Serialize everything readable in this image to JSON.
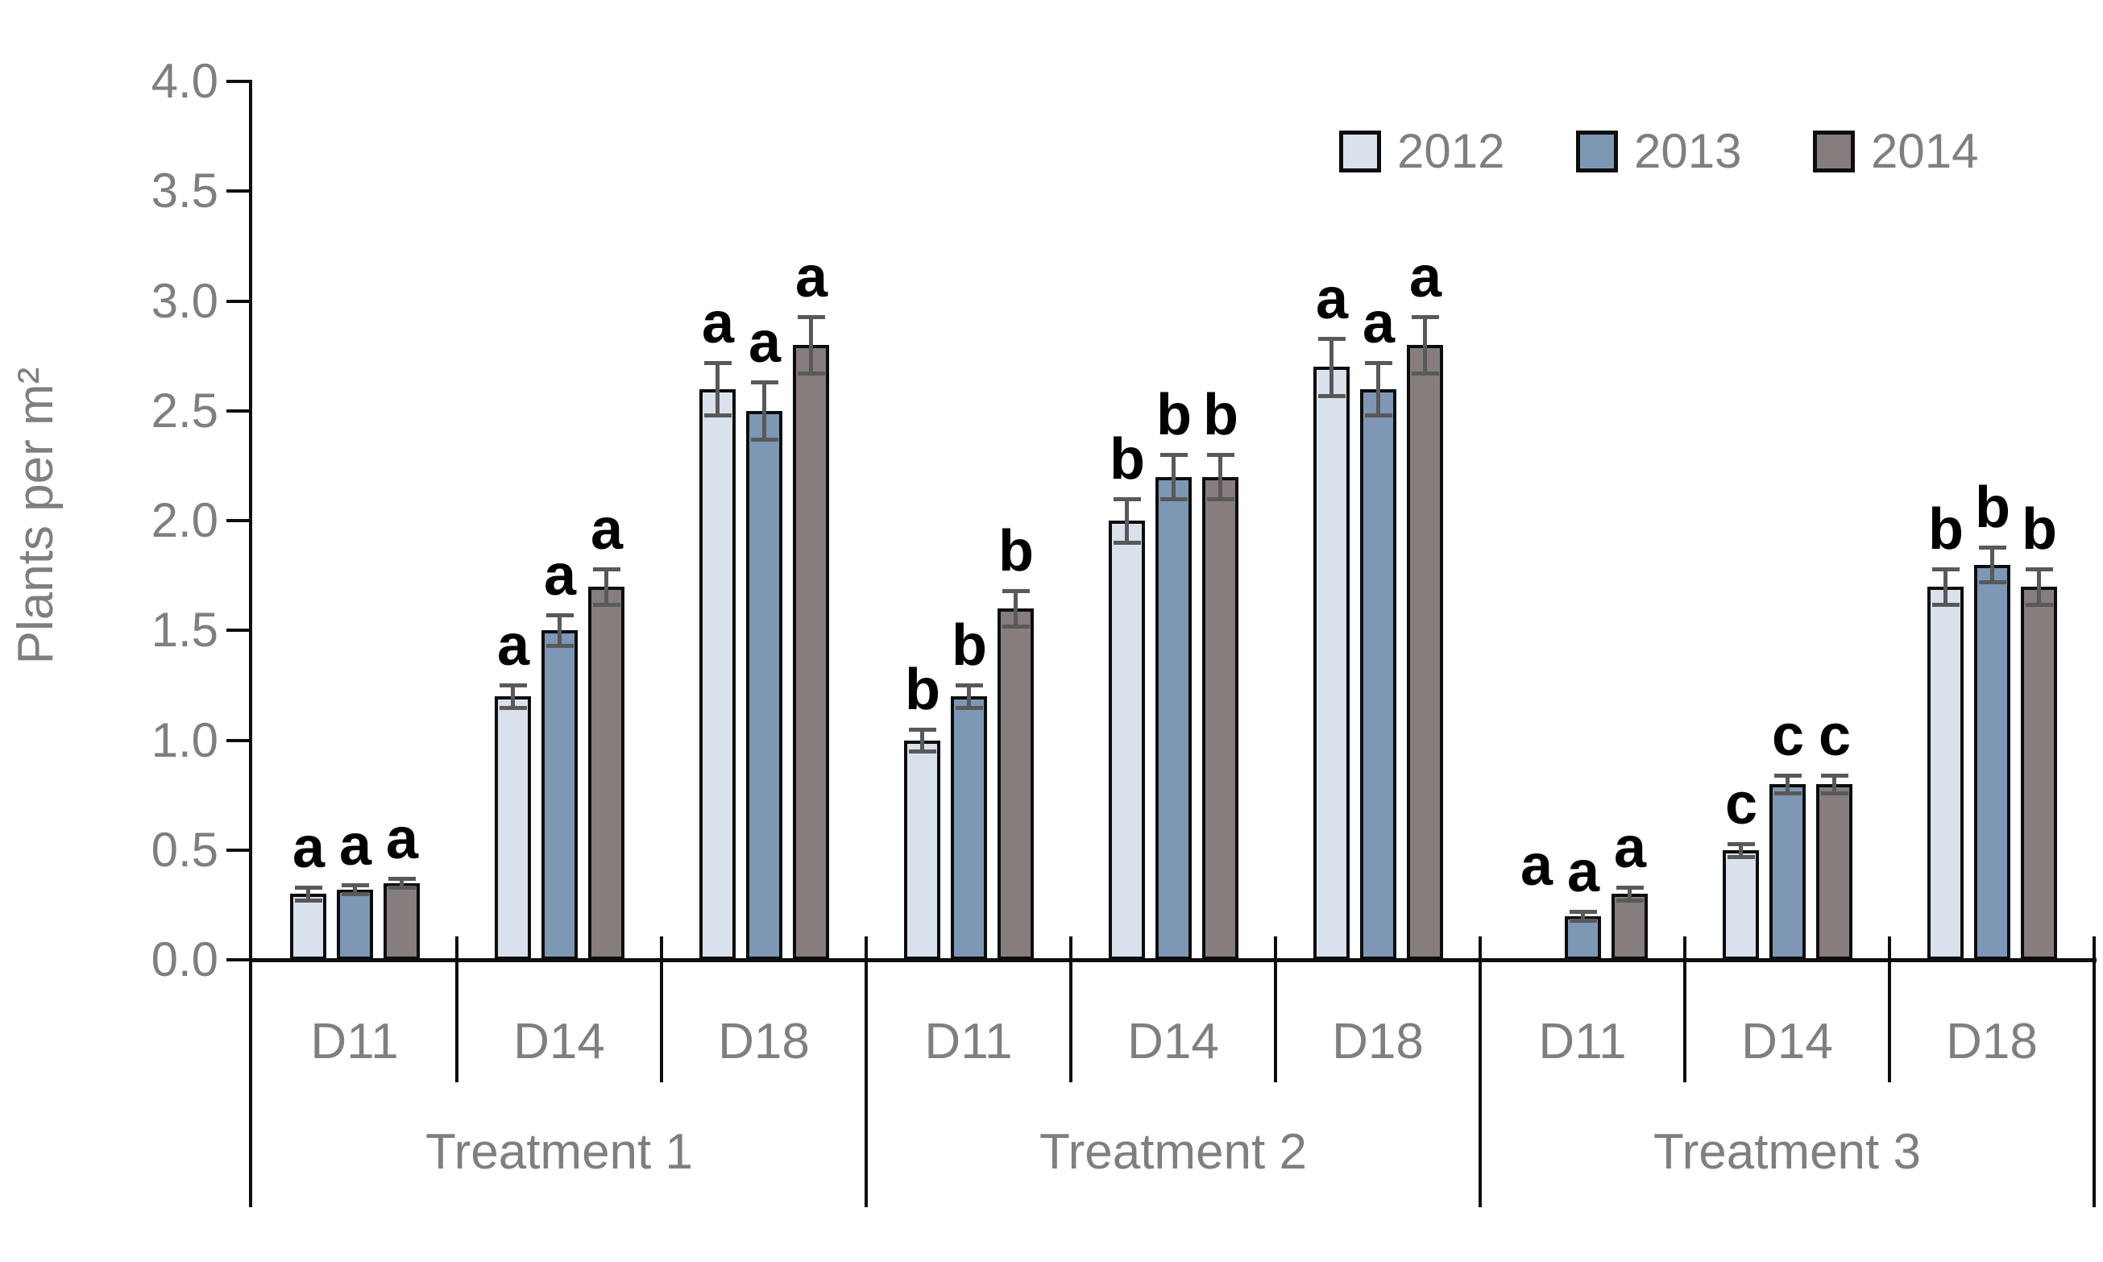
{
  "chart_data": {
    "type": "bar",
    "title": "",
    "ylabel": "Plants per m²",
    "xlabel": "",
    "ylim": [
      0.0,
      4.0
    ],
    "ytick_interval": 0.5,
    "yticklabels": [
      "0.0",
      "0.5",
      "1.0",
      "1.5",
      "2.0",
      "2.5",
      "3.0",
      "3.5",
      "4.0"
    ],
    "grid": false,
    "legend_position": "top-right",
    "series": [
      {
        "name": "2012",
        "color": "#d9e1ec"
      },
      {
        "name": "2013",
        "color": "#7e97b5"
      },
      {
        "name": "2014",
        "color": "#857e7c"
      }
    ],
    "subgroup_labels": [
      "D11",
      "D14",
      "D18"
    ],
    "groups": [
      {
        "treatment": "Treatment 1",
        "subgroups": [
          {
            "label": "D11",
            "values": [
              0.3,
              0.32,
              0.35
            ],
            "errors": [
              0.03,
              0.02,
              0.02
            ],
            "letters": [
              "a",
              "a",
              "a"
            ]
          },
          {
            "label": "D14",
            "values": [
              1.2,
              1.5,
              1.7
            ],
            "errors": [
              0.05,
              0.07,
              0.08
            ],
            "letters": [
              "a",
              "a",
              "a"
            ]
          },
          {
            "label": "D18",
            "values": [
              2.6,
              2.5,
              2.8
            ],
            "errors": [
              0.12,
              0.13,
              0.13
            ],
            "letters": [
              "a",
              "a",
              "a"
            ]
          }
        ]
      },
      {
        "treatment": "Treatment 2",
        "subgroups": [
          {
            "label": "D11",
            "values": [
              1.0,
              1.2,
              1.6
            ],
            "errors": [
              0.05,
              0.05,
              0.08
            ],
            "letters": [
              "b",
              "b",
              "b"
            ]
          },
          {
            "label": "D14",
            "values": [
              2.0,
              2.2,
              2.2
            ],
            "errors": [
              0.1,
              0.1,
              0.1
            ],
            "letters": [
              "b",
              "b",
              "b"
            ]
          },
          {
            "label": "D18",
            "values": [
              2.7,
              2.6,
              2.8
            ],
            "errors": [
              0.13,
              0.12,
              0.13
            ],
            "letters": [
              "a",
              "a",
              "a"
            ]
          }
        ]
      },
      {
        "treatment": "Treatment 3",
        "subgroups": [
          {
            "label": "D11",
            "values": [
              0.0,
              0.2,
              0.3
            ],
            "errors": [
              0,
              0.02,
              0.03
            ],
            "letters": [
              "a",
              "a",
              "a"
            ],
            "letter_anchors": [
              0.25,
              null,
              null
            ]
          },
          {
            "label": "D14",
            "values": [
              0.5,
              0.8,
              0.8
            ],
            "errors": [
              0.03,
              0.04,
              0.04
            ],
            "letters": [
              "c",
              "c",
              "c"
            ]
          },
          {
            "label": "D18",
            "values": [
              1.7,
              1.8,
              1.7
            ],
            "errors": [
              0.08,
              0.08,
              0.08
            ],
            "letters": [
              "b",
              "b",
              "b"
            ]
          }
        ]
      }
    ],
    "colors": {
      "axis": "#0d0d0d",
      "bar_border": "#0d0d0d",
      "error_bar": "#595959",
      "text_gray": "#7f7f7f",
      "letter": "#000000",
      "background": "#ffffff"
    }
  }
}
